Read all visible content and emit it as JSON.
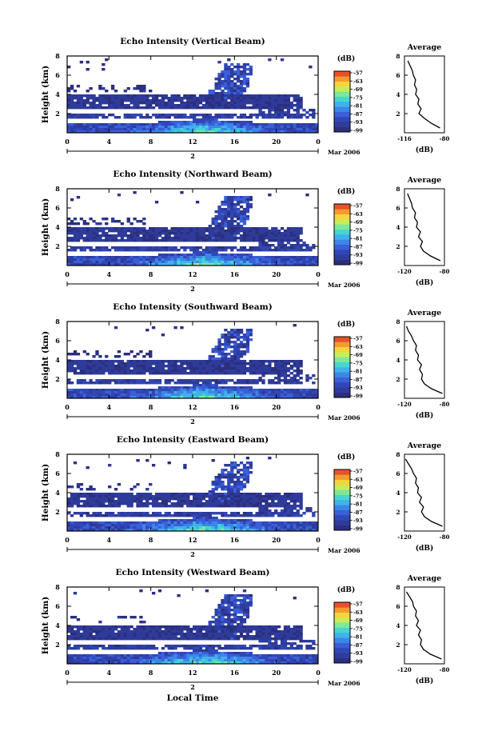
{
  "figure": {
    "xlabel": "Local Time",
    "date_label": "Mar 2006",
    "day_label": "2",
    "colorbar_unit": "(dB)",
    "colorbar_ticks": [
      "-57",
      "-63",
      "-69",
      "-75",
      "-81",
      "-87",
      "-93",
      "-99"
    ],
    "average_title": "Average",
    "average_xlabel": "(dB)",
    "colors": {
      "background_fill": "#ffffff",
      "low_echo": "#2e3b8f",
      "mid_echo": "#3a7fd6",
      "high_echo": "#38d6c8"
    }
  },
  "chart_data": [
    {
      "type": "heatmap",
      "title": "Echo Intensity (Vertical Beam)",
      "ylabel": "Height (km)",
      "xlim": [
        0,
        24
      ],
      "ylim": [
        0,
        8
      ],
      "xticks": [
        "0",
        "4",
        "8",
        "12",
        "16",
        "20",
        "0"
      ],
      "yticks": [
        "2",
        "4",
        "6",
        "8"
      ],
      "colorbar_range_db": [
        -99,
        -57
      ],
      "average_profile": {
        "xticks": [
          "-116",
          "-80"
        ],
        "xlim": [
          -116,
          -80
        ],
        "yticks": [
          "2",
          "4",
          "6",
          "8"
        ],
        "height_km": [
          0.5,
          1.0,
          1.5,
          2.0,
          2.5,
          3.0,
          3.5,
          4.0,
          4.5,
          5.0,
          5.5,
          6.0,
          6.5,
          7.0,
          7.5
        ],
        "db": [
          -84,
          -92,
          -98,
          -103,
          -101,
          -104,
          -103,
          -106,
          -105,
          -107,
          -106,
          -108,
          -109,
          -111,
          -113
        ]
      }
    },
    {
      "type": "heatmap",
      "title": "Echo Intensity (Northward Beam)",
      "ylabel": "Height (km)",
      "xlim": [
        0,
        24
      ],
      "ylim": [
        0,
        8
      ],
      "xticks": [
        "0",
        "4",
        "8",
        "12",
        "16",
        "20",
        "0"
      ],
      "yticks": [
        "2",
        "4",
        "6",
        "8"
      ],
      "colorbar_range_db": [
        -99,
        -57
      ],
      "average_profile": {
        "xticks": [
          "-120",
          "-80"
        ],
        "xlim": [
          -120,
          -80
        ],
        "yticks": [
          "2",
          "4",
          "6",
          "8"
        ],
        "height_km": [
          0.5,
          1.0,
          1.5,
          2.0,
          2.5,
          3.0,
          3.5,
          4.0,
          4.5,
          5.0,
          5.5,
          6.0,
          6.5,
          7.0,
          7.5
        ],
        "db": [
          -84,
          -94,
          -101,
          -104,
          -102,
          -106,
          -104,
          -108,
          -107,
          -110,
          -109,
          -112,
          -113,
          -115,
          -117
        ]
      }
    },
    {
      "type": "heatmap",
      "title": "Echo Intensity (Southward Beam)",
      "ylabel": "Height (km)",
      "xlim": [
        0,
        24
      ],
      "ylim": [
        0,
        8
      ],
      "xticks": [
        "0",
        "4",
        "8",
        "12",
        "16",
        "20",
        "0"
      ],
      "yticks": [
        "2",
        "4",
        "6",
        "8"
      ],
      "colorbar_range_db": [
        -99,
        -57
      ],
      "average_profile": {
        "xticks": [
          "-120",
          "-80"
        ],
        "xlim": [
          -120,
          -80
        ],
        "yticks": [
          "2",
          "4",
          "6",
          "8"
        ],
        "height_km": [
          0.5,
          1.0,
          1.5,
          2.0,
          2.5,
          3.0,
          3.5,
          4.0,
          4.5,
          5.0,
          5.5,
          6.0,
          6.5,
          7.0,
          7.5
        ],
        "db": [
          -82,
          -93,
          -100,
          -103,
          -102,
          -105,
          -103,
          -107,
          -106,
          -109,
          -108,
          -111,
          -113,
          -116,
          -118
        ]
      }
    },
    {
      "type": "heatmap",
      "title": "Echo Intensity (Eastward Beam)",
      "ylabel": "Height (km)",
      "xlim": [
        0,
        24
      ],
      "ylim": [
        0,
        8
      ],
      "xticks": [
        "0",
        "4",
        "8",
        "12",
        "16",
        "20",
        "0"
      ],
      "yticks": [
        "2",
        "4",
        "6",
        "8"
      ],
      "colorbar_range_db": [
        -99,
        -57
      ],
      "average_profile": {
        "xticks": [
          "-120",
          "-80"
        ],
        "xlim": [
          -120,
          -80
        ],
        "yticks": [
          "2",
          "4",
          "6",
          "8"
        ],
        "height_km": [
          0.5,
          1.0,
          1.5,
          2.0,
          2.5,
          3.0,
          3.5,
          4.0,
          4.5,
          5.0,
          5.5,
          6.0,
          6.5,
          7.0,
          7.5
        ],
        "db": [
          -82,
          -93,
          -100,
          -103,
          -101,
          -105,
          -103,
          -107,
          -106,
          -109,
          -108,
          -111,
          -113,
          -116,
          -119
        ]
      }
    },
    {
      "type": "heatmap",
      "title": "Echo Intensity (Westward Beam)",
      "ylabel": "Height (km)",
      "xlim": [
        0,
        24
      ],
      "ylim": [
        0,
        8
      ],
      "xticks": [
        "0",
        "4",
        "8",
        "12",
        "16",
        "20",
        "0"
      ],
      "yticks": [
        "2",
        "4",
        "6",
        "8"
      ],
      "colorbar_range_db": [
        -99,
        -57
      ],
      "average_profile": {
        "xticks": [
          "-120",
          "-80"
        ],
        "xlim": [
          -120,
          -80
        ],
        "yticks": [
          "2",
          "4",
          "6",
          "8"
        ],
        "height_km": [
          0.5,
          1.0,
          1.5,
          2.0,
          2.5,
          3.0,
          3.5,
          4.0,
          4.5,
          5.0,
          5.5,
          6.0,
          6.5,
          7.0,
          7.5
        ],
        "db": [
          -83,
          -94,
          -101,
          -104,
          -103,
          -106,
          -104,
          -108,
          -106,
          -109,
          -108,
          -111,
          -112,
          -115,
          -118
        ]
      }
    }
  ]
}
